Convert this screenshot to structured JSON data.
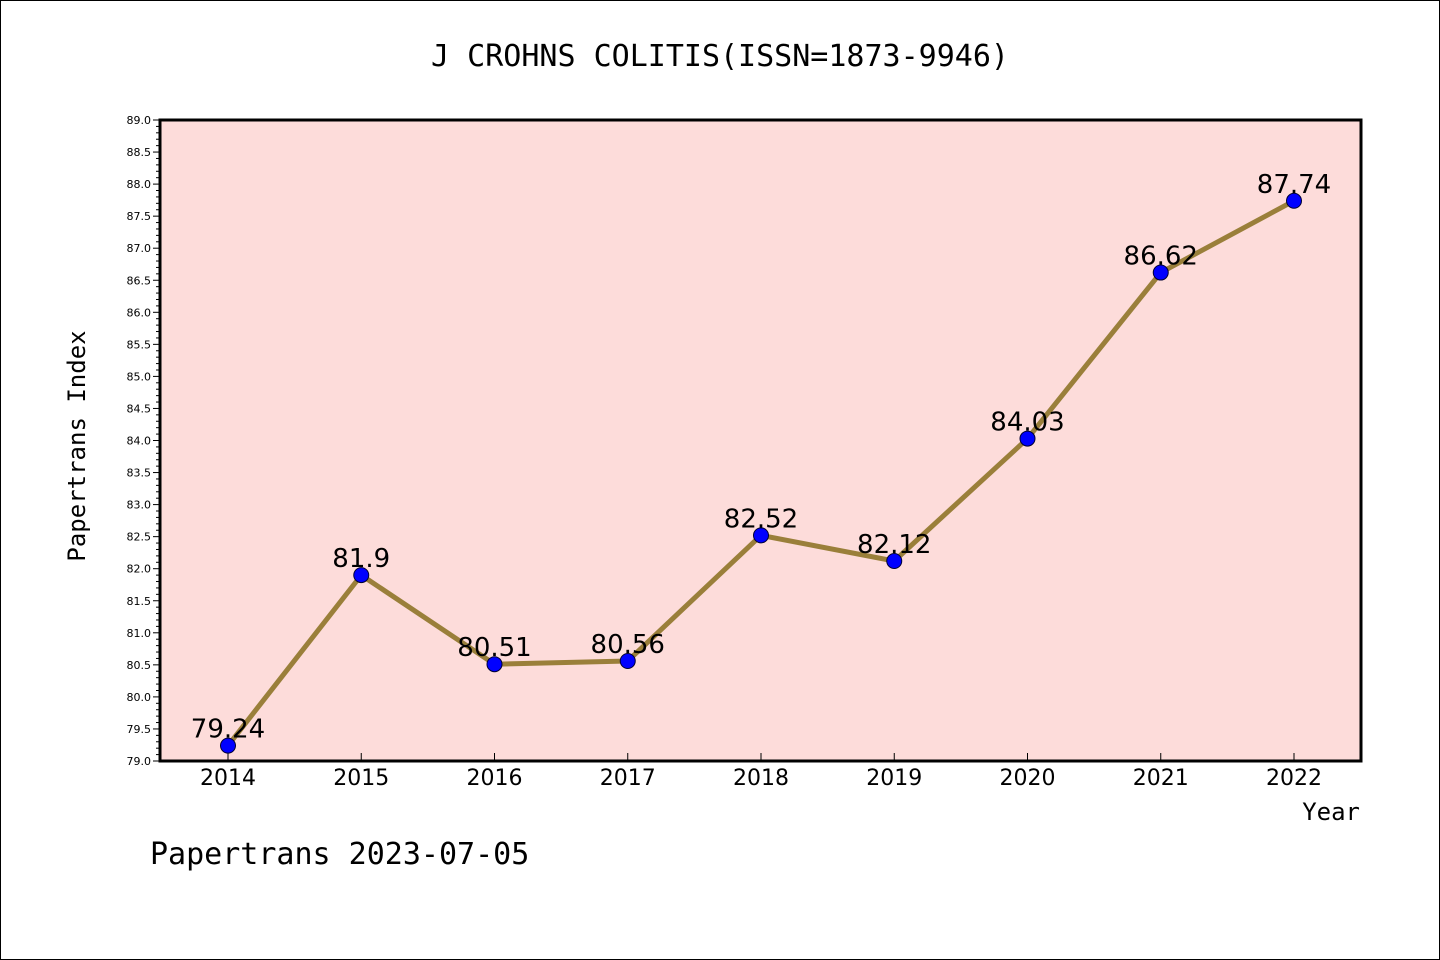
{
  "chart_data": {
    "type": "line",
    "title": "J CROHNS COLITIS(ISSN=1873-9946)",
    "xlabel": "Year",
    "ylabel": "Papertrans Index",
    "categories": [
      "2014",
      "2015",
      "2016",
      "2017",
      "2018",
      "2019",
      "2020",
      "2021",
      "2022"
    ],
    "values": [
      79.24,
      81.9,
      80.51,
      80.56,
      82.52,
      82.12,
      84.03,
      86.62,
      87.74
    ],
    "data_labels": [
      "79.24",
      "81.9",
      "80.51",
      "80.56",
      "82.52",
      "82.12",
      "84.03",
      "86.62",
      "87.74"
    ],
    "ylim": [
      79.0,
      89.0
    ],
    "yticks": [
      "79.0",
      "79.5",
      "80.0",
      "80.5",
      "81.0",
      "81.5",
      "82.0",
      "82.5",
      "83.0",
      "83.5",
      "84.0",
      "84.5",
      "85.0",
      "85.5",
      "86.0",
      "86.5",
      "87.0",
      "87.5",
      "88.0",
      "88.5",
      "89.0"
    ],
    "grid": false,
    "legend": "none",
    "colors": {
      "plot_background": "#fddcda",
      "line": "#9a7f3a",
      "marker": "#0000ff"
    }
  },
  "footer": "Papertrans 2023-07-05"
}
